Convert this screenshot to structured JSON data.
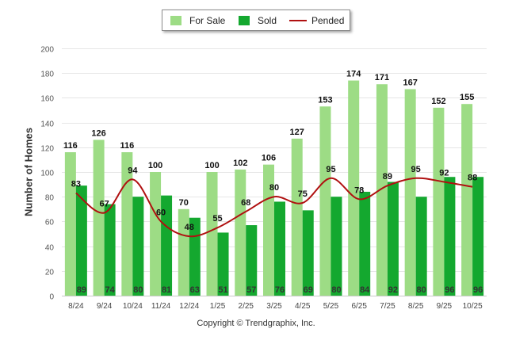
{
  "chart_data": {
    "type": "bar",
    "title": "",
    "xlabel": "",
    "ylabel": "Number of Homes",
    "ylim": [
      0,
      200
    ],
    "yticks": [
      0,
      20,
      40,
      60,
      80,
      100,
      120,
      140,
      160,
      180,
      200
    ],
    "categories": [
      "8/24",
      "9/24",
      "10/24",
      "11/24",
      "12/24",
      "1/25",
      "2/25",
      "3/25",
      "4/25",
      "5/25",
      "6/25",
      "7/25",
      "8/25",
      "9/25",
      "10/25"
    ],
    "series": [
      {
        "name": "For Sale",
        "kind": "bar",
        "color": "#9ddc85",
        "values": [
          116,
          126,
          116,
          100,
          70,
          100,
          102,
          106,
          127,
          153,
          174,
          171,
          167,
          152,
          155
        ]
      },
      {
        "name": "Sold",
        "kind": "bar",
        "color": "#14a82f",
        "values": [
          89,
          74,
          80,
          81,
          63,
          51,
          57,
          76,
          69,
          80,
          84,
          92,
          80,
          96,
          96
        ]
      },
      {
        "name": "Pended",
        "kind": "line",
        "color": "#b01010",
        "values": [
          83,
          67,
          94,
          60,
          48,
          55,
          68,
          80,
          75,
          95,
          78,
          89,
          95,
          92,
          88
        ]
      }
    ],
    "legend": [
      "For Sale",
      "Sold",
      "Pended"
    ],
    "legend_position": "top-center",
    "grid": true
  },
  "footer": {
    "copyright": "Copyright © Trendgraphix, Inc."
  }
}
